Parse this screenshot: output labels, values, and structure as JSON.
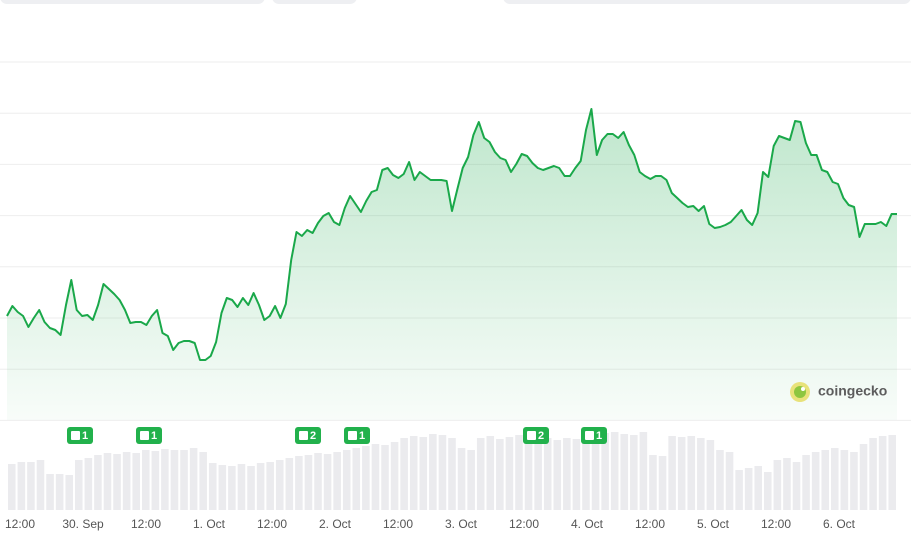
{
  "chart_data": {
    "type": "line",
    "color": "#1aa84a",
    "ylim": [
      0,
      360
    ],
    "values": [
      104,
      114,
      108,
      104,
      93,
      102,
      110,
      98,
      92,
      90,
      85,
      115,
      140,
      110,
      104,
      105,
      100,
      115,
      136,
      131,
      126,
      120,
      110,
      97,
      98,
      98,
      95,
      104,
      110,
      87,
      84,
      70,
      77,
      79,
      79,
      77,
      60,
      60,
      64,
      78,
      107,
      122,
      120,
      113,
      122,
      115,
      127,
      115,
      100,
      104,
      114,
      102,
      116,
      160,
      188,
      184,
      190,
      187,
      197,
      204,
      207,
      198,
      195,
      212,
      224,
      216,
      208,
      219,
      228,
      230,
      250,
      252,
      245,
      242,
      246,
      258,
      240,
      248,
      244,
      240,
      240,
      240,
      239,
      209,
      231,
      252,
      263,
      285,
      298,
      282,
      278,
      268,
      262,
      260,
      248,
      256,
      266,
      264,
      257,
      252,
      250,
      252,
      254,
      252,
      244,
      244,
      252,
      259,
      290,
      311,
      265,
      280,
      286,
      286,
      282,
      288,
      275,
      265,
      248,
      244,
      241,
      244,
      244,
      240,
      227,
      222,
      217,
      213,
      214,
      209,
      214,
      196,
      192,
      193,
      195,
      198,
      204,
      210,
      200,
      195,
      207,
      248,
      243,
      274,
      284,
      282,
      280,
      299,
      298,
      277,
      265,
      265,
      250,
      248,
      238,
      236,
      222,
      215,
      213,
      183,
      196,
      196,
      196,
      198,
      194,
      206,
      206
    ],
    "volume": {
      "color": "#ebebee",
      "ylim": [
        0,
        90
      ],
      "values": [
        46,
        48,
        48,
        50,
        36,
        36,
        35,
        50,
        52,
        55,
        57,
        56,
        58,
        57,
        60,
        59,
        61,
        60,
        60,
        62,
        58,
        47,
        45,
        44,
        46,
        44,
        47,
        48,
        50,
        52,
        54,
        55,
        57,
        56,
        58,
        60,
        62,
        64,
        66,
        65,
        68,
        72,
        74,
        73,
        76,
        75,
        72,
        62,
        60,
        72,
        74,
        71,
        73,
        75,
        74,
        76,
        72,
        70,
        72,
        71,
        70,
        74,
        77,
        78,
        76,
        75,
        78,
        55,
        54,
        74,
        73,
        74,
        72,
        70,
        60,
        58,
        40,
        42,
        44,
        38,
        50,
        52,
        48,
        55,
        58,
        60,
        62,
        60,
        58,
        66,
        72,
        74,
        75
      ]
    },
    "x_labels": [
      "12:00",
      "30. Sep",
      "12:00",
      "1. Oct",
      "12:00",
      "2. Oct",
      "12:00",
      "3. Oct",
      "12:00",
      "4. Oct",
      "12:00",
      "5. Oct",
      "12:00",
      "6. Oct"
    ],
    "news_counts": [
      1,
      1,
      2,
      1,
      2,
      1
    ],
    "brand": "coingecko"
  }
}
